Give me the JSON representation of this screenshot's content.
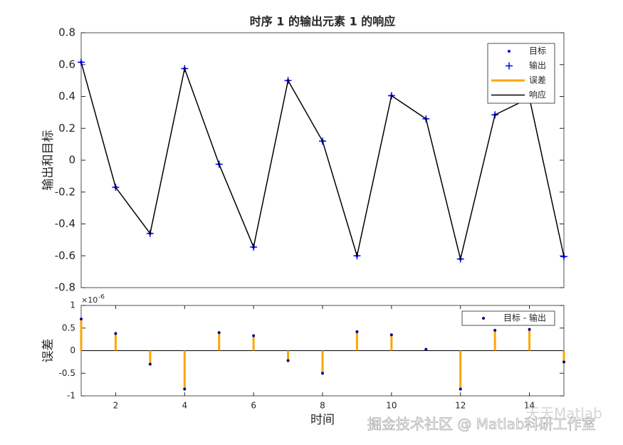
{
  "chart_data": [
    {
      "type": "line",
      "title": "时序 1 的输出元素 1 的响应",
      "ylabel": "输出和目标",
      "x": [
        1,
        2,
        3,
        4,
        5,
        6,
        7,
        8,
        9,
        10,
        11,
        12,
        13,
        14,
        15
      ],
      "xlim": [
        1,
        15
      ],
      "ylim": [
        -0.8,
        0.8
      ],
      "yticks": [
        -0.8,
        -0.6,
        -0.4,
        -0.2,
        0,
        0.2,
        0.4,
        0.6,
        0.8
      ],
      "legend": "upper right",
      "series": [
        {
          "name": "目标",
          "style": "dot",
          "color": "#0000ff",
          "values": [
            0.615,
            -0.17,
            -0.46,
            0.575,
            -0.025,
            -0.545,
            0.5,
            0.12,
            -0.6,
            0.405,
            0.26,
            -0.62,
            0.285,
            0.39,
            -0.605
          ]
        },
        {
          "name": "输出",
          "style": "plus",
          "color": "#0000ff",
          "values": [
            0.615,
            -0.17,
            -0.46,
            0.575,
            -0.025,
            -0.545,
            0.5,
            0.12,
            -0.6,
            0.405,
            0.26,
            -0.62,
            0.285,
            0.39,
            -0.605
          ]
        },
        {
          "name": "误差",
          "style": "error",
          "color": "#ffa500",
          "values": [
            7e-07,
            3.8e-07,
            -3e-07,
            -8.5e-07,
            4e-07,
            3.3e-07,
            -2.2e-07,
            -5e-07,
            4.2e-07,
            3.5e-07,
            3e-08,
            -8.5e-07,
            4.5e-07,
            4.7e-07,
            -2.5e-07
          ]
        },
        {
          "name": "响应",
          "style": "line",
          "color": "#000000",
          "values": [
            0.615,
            -0.17,
            -0.46,
            0.575,
            -0.025,
            -0.545,
            0.5,
            0.12,
            -0.6,
            0.405,
            0.26,
            -0.62,
            0.285,
            0.39,
            -0.605
          ]
        }
      ]
    },
    {
      "type": "stem",
      "xlabel": "时间",
      "ylabel": "误差",
      "y_scale_base": "×10",
      "y_scale_exponent": "-6",
      "x": [
        1,
        2,
        3,
        4,
        5,
        6,
        7,
        8,
        9,
        10,
        11,
        12,
        13,
        14,
        15
      ],
      "xlim": [
        1,
        15
      ],
      "xticks": [
        2,
        4,
        6,
        8,
        10,
        12,
        14
      ],
      "ylim": [
        -1,
        1
      ],
      "yticks": [
        -1,
        -0.5,
        0,
        0.5,
        1
      ],
      "legend": "upper right",
      "series": [
        {
          "name": "目标 - 输出",
          "color": "#ffa500",
          "marker_color": "#00008b",
          "values": [
            0.7,
            0.38,
            -0.3,
            -0.85,
            0.4,
            0.33,
            -0.22,
            -0.5,
            0.42,
            0.35,
            0.03,
            -0.85,
            0.45,
            0.47,
            -0.25
          ]
        }
      ]
    }
  ],
  "watermark": [
    "掘金技术社区 @ Matlab科研工作室",
    "天天Matlab"
  ]
}
